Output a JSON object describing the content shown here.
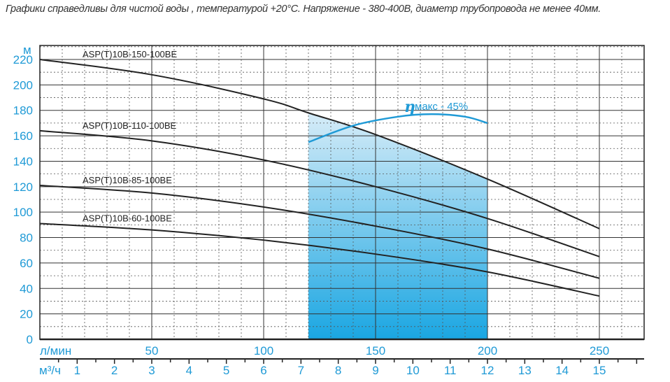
{
  "chart_data": {
    "type": "line",
    "note": "Графики справедливы для чистой воды , температурой  +20°C. Напряжение - 380-400В,  диаметр  трубопровода не менее 40мм.",
    "ylabel": "м",
    "xlabel": "л/мин",
    "x2label": "м³/ч",
    "xlim": [
      0,
      270
    ],
    "ylim": [
      0,
      231
    ],
    "yticks": [
      0,
      20,
      40,
      60,
      80,
      100,
      120,
      140,
      160,
      180,
      200,
      220
    ],
    "xticks": [
      50,
      100,
      150,
      200,
      250
    ],
    "x2ticks": [
      1,
      2,
      3,
      4,
      5,
      6,
      7,
      8,
      9,
      10,
      11,
      12,
      13,
      14,
      15
    ],
    "grid": true,
    "series": [
      {
        "name": "ASP(T)10B-150-100BE",
        "x": [
          0,
          50,
          100,
          120,
          150,
          200,
          250
        ],
        "y": [
          220,
          208,
          189,
          178,
          161,
          126,
          87
        ]
      },
      {
        "name": "ASP(T)10B-110-100BE",
        "x": [
          0,
          50,
          100,
          150,
          200,
          250
        ],
        "y": [
          164,
          156,
          141,
          120,
          95,
          65
        ]
      },
      {
        "name": "ASP(T)10B-85-100BE",
        "x": [
          0,
          50,
          100,
          150,
          200,
          250
        ],
        "y": [
          121,
          115,
          104,
          89,
          71,
          48
        ]
      },
      {
        "name": "ASP(T)10B-60-100BE",
        "x": [
          0,
          50,
          100,
          150,
          200,
          250
        ],
        "y": [
          91,
          86,
          78,
          67,
          53,
          34
        ]
      }
    ],
    "efficiency": {
      "label_eta": "η",
      "label": "макс - 45%",
      "x": [
        120,
        140,
        160,
        175,
        190,
        200
      ],
      "y": [
        155,
        168,
        175,
        177,
        175,
        170
      ]
    },
    "shaded_range": [
      120,
      200
    ],
    "colors": {
      "accent": "#1f9ad6",
      "line": "#222222"
    }
  }
}
